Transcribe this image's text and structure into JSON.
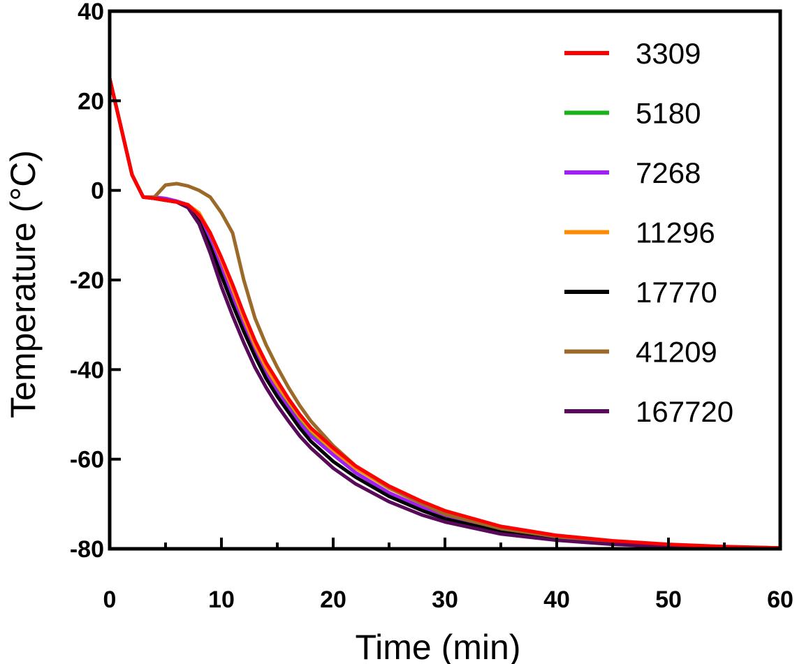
{
  "chart_data": {
    "type": "line",
    "title": "",
    "xlabel": "Time (min)",
    "ylabel": "Temperature (°C)",
    "xlim": [
      0,
      60
    ],
    "ylim": [
      -80,
      40
    ],
    "xticks": [
      0,
      10,
      20,
      30,
      40,
      50,
      60
    ],
    "yticks": [
      40,
      20,
      0,
      -20,
      -40,
      -60,
      -80
    ],
    "grid": false,
    "legend_position": "top-right",
    "x": [
      0,
      2,
      3,
      4,
      5,
      6,
      7,
      8,
      9,
      10,
      11,
      12,
      13,
      14,
      15,
      16,
      17,
      18,
      20,
      22,
      25,
      28,
      30,
      35,
      40,
      45,
      50,
      55,
      60
    ],
    "series": [
      {
        "name": "3309",
        "color": "#ff0000",
        "values": [
          25,
          3.5,
          -1.5,
          -1.8,
          -2.2,
          -2.6,
          -3.2,
          -5.5,
          -9.5,
          -15,
          -21,
          -27.5,
          -33.5,
          -38.5,
          -42.5,
          -46.5,
          -50,
          -53,
          -57.5,
          -61.5,
          -66,
          -69.5,
          -71.5,
          -75,
          -77,
          -78.2,
          -79,
          -79.5,
          -79.8
        ]
      },
      {
        "name": "5180",
        "color": "#19b219",
        "values": [
          25,
          3.5,
          -1.5,
          -1.8,
          -2.2,
          -2.6,
          -3.3,
          -5.8,
          -10.5,
          -16.5,
          -23,
          -29.5,
          -35,
          -40,
          -44,
          -47.5,
          -51,
          -53.8,
          -58,
          -62,
          -66.5,
          -70,
          -72,
          -75.3,
          -77.2,
          -78.4,
          -79.1,
          -79.6,
          -79.8
        ]
      },
      {
        "name": "7268",
        "color": "#a020f0",
        "values": [
          25,
          3.5,
          -1.5,
          -1.5,
          -1.8,
          -2.4,
          -3.2,
          -6.2,
          -11.5,
          -17.5,
          -24,
          -30.5,
          -36,
          -41,
          -45,
          -48.5,
          -52,
          -54.8,
          -59,
          -63,
          -67.5,
          -70.8,
          -72.8,
          -75.8,
          -77.5,
          -78.6,
          -79.2,
          -79.6,
          -79.8
        ]
      },
      {
        "name": "11296",
        "color": "#ff8c00",
        "values": [
          25,
          3.5,
          -1.5,
          -1.8,
          -2.2,
          -2.6,
          -3.2,
          -5.0,
          -9.5,
          -15.5,
          -22,
          -28.5,
          -34.5,
          -39.5,
          -43.5,
          -47,
          -50.5,
          -53.5,
          -58,
          -62,
          -66.5,
          -70,
          -72,
          -75.3,
          -77.2,
          -78.4,
          -79.1,
          -79.6,
          -79.8
        ]
      },
      {
        "name": "17770",
        "color": "#000000",
        "values": [
          25,
          3.5,
          -1.5,
          -1.8,
          -2.2,
          -2.6,
          -3.8,
          -7.0,
          -12.5,
          -19,
          -25.5,
          -31.5,
          -37,
          -42,
          -46,
          -49.5,
          -53,
          -56,
          -60.5,
          -64,
          -68.3,
          -71.5,
          -73.3,
          -76.2,
          -77.8,
          -78.8,
          -79.3,
          -79.7,
          -79.9
        ]
      },
      {
        "name": "41209",
        "color": "#9b6a28",
        "values": [
          25,
          3.5,
          -1.5,
          -1.5,
          1.2,
          1.5,
          1.0,
          0.0,
          -1.5,
          -5,
          -9.5,
          -20,
          -28.5,
          -34.5,
          -39.5,
          -44,
          -48,
          -51.5,
          -57,
          -61.5,
          -66.3,
          -70,
          -72.3,
          -75.5,
          -77.3,
          -78.5,
          -79.2,
          -79.6,
          -79.8
        ]
      },
      {
        "name": "167720",
        "color": "#5a0a5a",
        "values": [
          25,
          3.5,
          -1.5,
          -1.8,
          -2.2,
          -2.6,
          -3.8,
          -7.5,
          -14,
          -21.5,
          -28,
          -34,
          -39.5,
          -44,
          -48,
          -51.5,
          -54.8,
          -57.5,
          -62,
          -65.5,
          -69.5,
          -72.5,
          -74,
          -76.7,
          -78.1,
          -79,
          -79.5,
          -79.8,
          -79.9
        ]
      }
    ]
  }
}
